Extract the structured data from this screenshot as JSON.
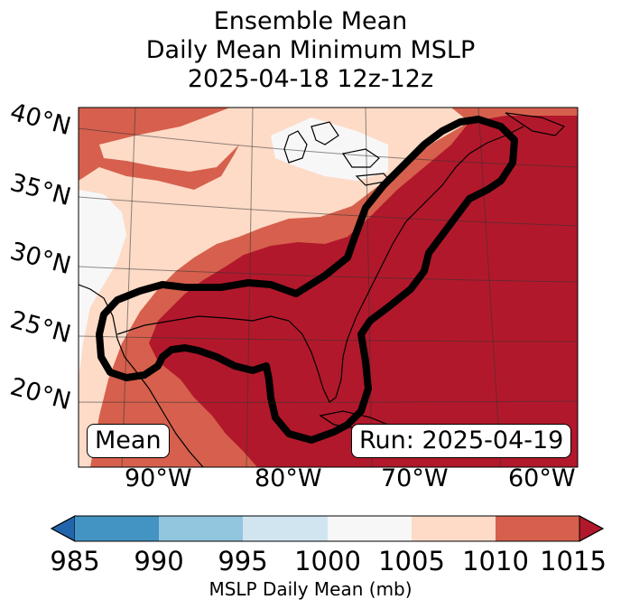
{
  "title": {
    "line1": "Ensemble Mean",
    "line2": "Daily Mean Minimum MSLP",
    "line3": "2025-04-18 12z-12z"
  },
  "map": {
    "mean_label": "Mean",
    "run_label": "Run: 2025-04-19",
    "lat_labels": [
      "40°N",
      "35°N",
      "30°N",
      "25°N",
      "20°N"
    ],
    "lon_labels": [
      "90°W",
      "80°W",
      "70°W",
      "60°W"
    ],
    "colors": {
      "v1015": "#b2182b",
      "v1010": "#d6604d",
      "v1005": "#fddbc7",
      "v1000": "#f7f7f7",
      "contour": "#000000"
    }
  },
  "colorbar": {
    "ticks": [
      "985",
      "990",
      "995",
      "1000",
      "1005",
      "1010",
      "1015"
    ],
    "label": "MSLP Daily Mean (mb)",
    "colors": [
      "#2166ac",
      "#4393c3",
      "#92c5de",
      "#d1e5f0",
      "#f7f7f7",
      "#fddbc7",
      "#d6604d",
      "#b2182b"
    ]
  }
}
